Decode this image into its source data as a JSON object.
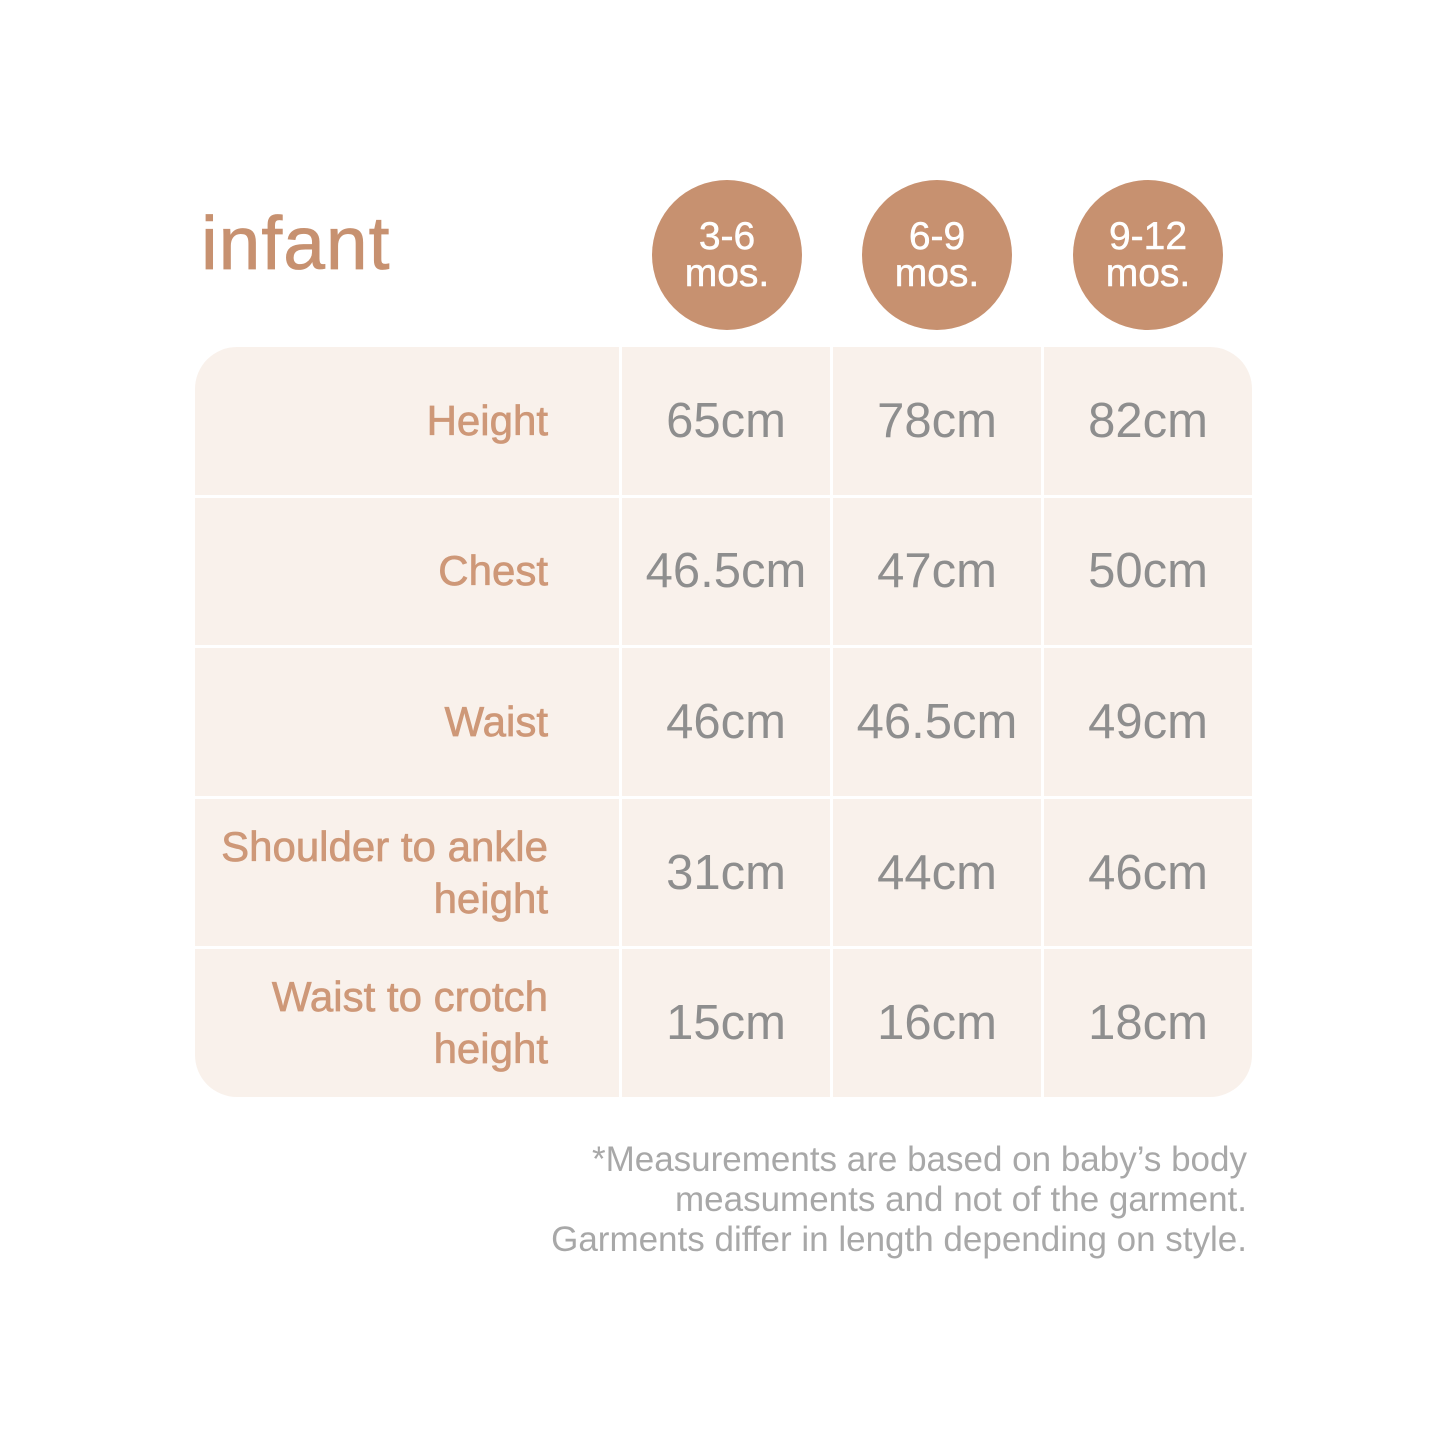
{
  "accent_color": "#C79170",
  "page_title": "infant",
  "badges": [
    {
      "range": "3-6",
      "unit": "mos."
    },
    {
      "range": "6-9",
      "unit": "mos."
    },
    {
      "range": "9-12",
      "unit": "mos."
    }
  ],
  "table": {
    "cell_background": "#F9F1EB",
    "label_color": "#CE9878",
    "value_color": "#8E8E8E",
    "rows": [
      {
        "label": "Height",
        "values": [
          "65cm",
          "78cm",
          "82cm"
        ]
      },
      {
        "label": "Chest",
        "values": [
          "46.5cm",
          "47cm",
          "50cm"
        ]
      },
      {
        "label": "Waist",
        "values": [
          "46cm",
          "46.5cm",
          "49cm"
        ]
      },
      {
        "label": "Shoulder to ankle height",
        "values": [
          "31cm",
          "44cm",
          "46cm"
        ]
      },
      {
        "label": "Waist to crotch height",
        "values": [
          "15cm",
          "16cm",
          "18cm"
        ]
      }
    ]
  },
  "footnote": {
    "color": "#A8A8A8",
    "lines": [
      "*Measurements are based on baby’s body",
      "measuments and not of the garment.",
      "Garments differ in length depending on style."
    ]
  },
  "chart_data": {
    "type": "table",
    "title": "infant",
    "columns": [
      "3-6 mos.",
      "6-9 mos.",
      "9-12 mos."
    ],
    "unit": "cm",
    "rows": [
      {
        "label": "Height",
        "values_cm": [
          65,
          78,
          82
        ]
      },
      {
        "label": "Chest",
        "values_cm": [
          46.5,
          47,
          50
        ]
      },
      {
        "label": "Waist",
        "values_cm": [
          46,
          46.5,
          49
        ]
      },
      {
        "label": "Shoulder to ankle height",
        "values_cm": [
          31,
          44,
          46
        ]
      },
      {
        "label": "Waist to crotch height",
        "values_cm": [
          15,
          16,
          18
        ]
      }
    ],
    "note": "*Measurements are based on baby’s body measuments and not of the garment. Garments differ in length depending on style."
  }
}
